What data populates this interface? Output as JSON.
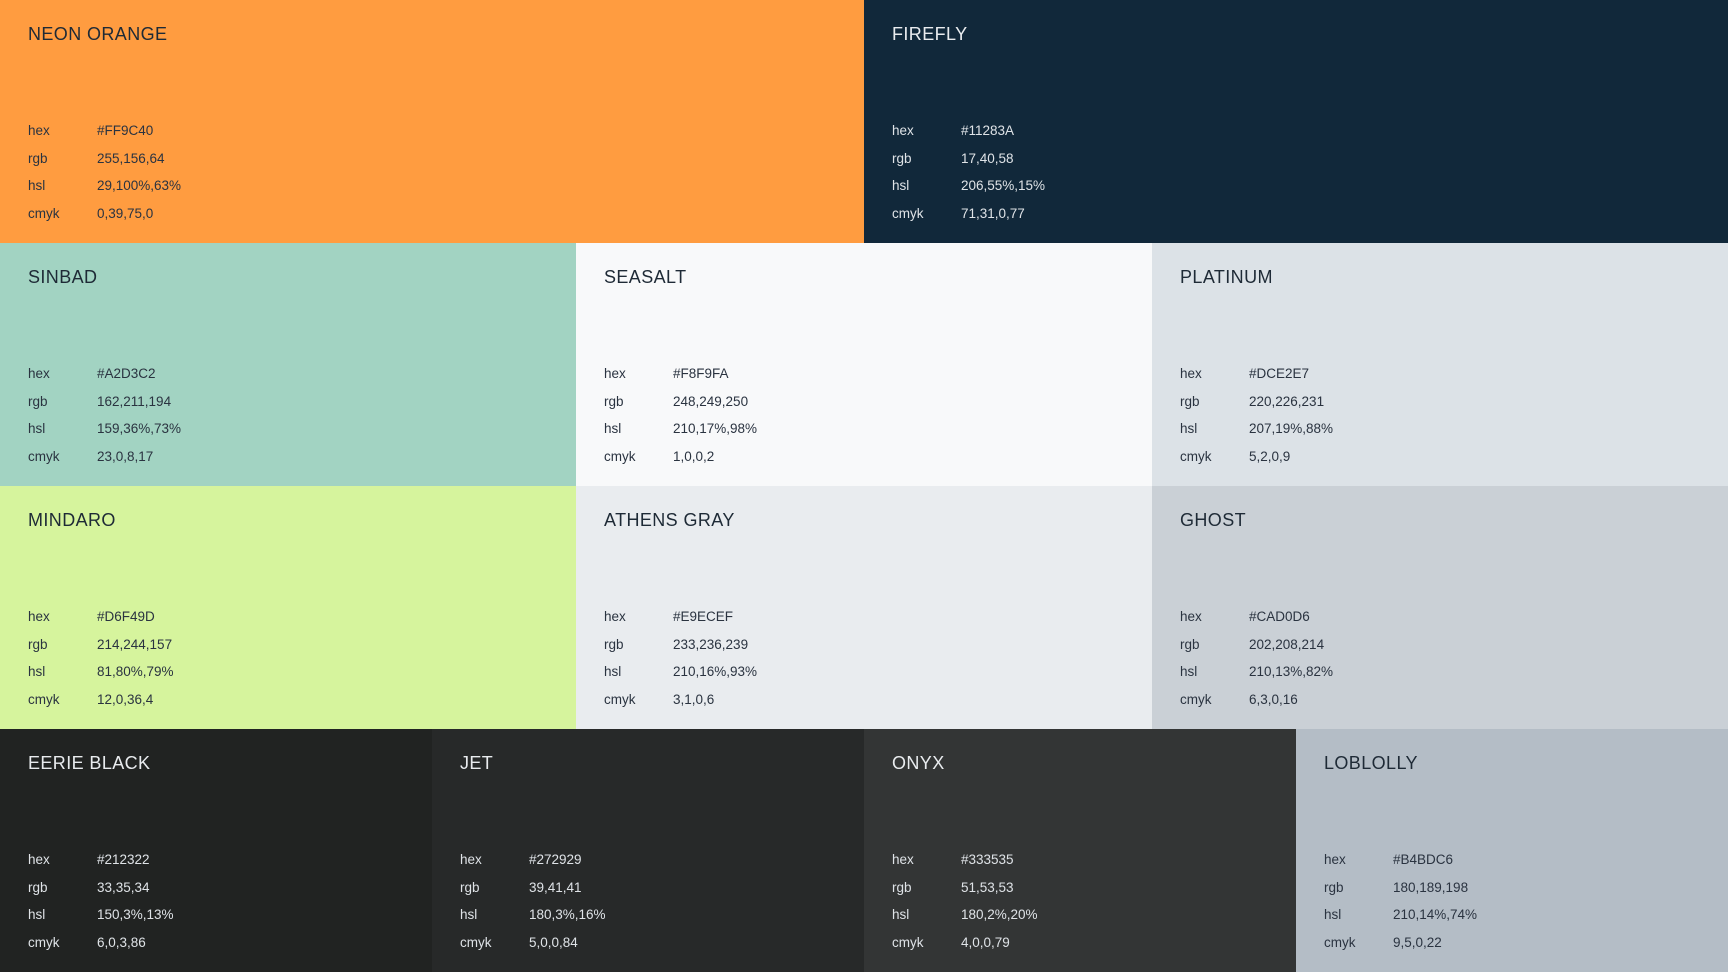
{
  "rows": [
    [
      {
        "name": "NEON ORANGE",
        "bg": "#FF9C40",
        "theme": "light",
        "hex": "#FF9C40",
        "rgb": "255,156,64",
        "hsl": "29,100%,63%",
        "cmyk": "0,39,75,0"
      },
      {
        "name": "FIREFLY",
        "bg": "#11283A",
        "theme": "dark",
        "hex": "#11283A",
        "rgb": "17,40,58",
        "hsl": "206,55%,15%",
        "cmyk": "71,31,0,77"
      }
    ],
    [
      {
        "name": "SINBAD",
        "bg": "#A2D3C2",
        "theme": "light",
        "hex": "#A2D3C2",
        "rgb": "162,211,194",
        "hsl": "159,36%,73%",
        "cmyk": "23,0,8,17"
      },
      {
        "name": "SEASALT",
        "bg": "#F8F9FA",
        "theme": "light",
        "hex": "#F8F9FA",
        "rgb": "248,249,250",
        "hsl": "210,17%,98%",
        "cmyk": "1,0,0,2"
      },
      {
        "name": "PLATINUM",
        "bg": "#DCE2E7",
        "theme": "light",
        "hex": "#DCE2E7",
        "rgb": "220,226,231",
        "hsl": "207,19%,88%",
        "cmyk": "5,2,0,9"
      }
    ],
    [
      {
        "name": "MINDARO",
        "bg": "#D6F49D",
        "theme": "light",
        "hex": "#D6F49D",
        "rgb": "214,244,157",
        "hsl": "81,80%,79%",
        "cmyk": "12,0,36,4"
      },
      {
        "name": "ATHENS GRAY",
        "bg": "#E9ECEF",
        "theme": "light",
        "hex": "#E9ECEF",
        "rgb": "233,236,239",
        "hsl": "210,16%,93%",
        "cmyk": "3,1,0,6"
      },
      {
        "name": "GHOST",
        "bg": "#CAD0D6",
        "theme": "light",
        "hex": "#CAD0D6",
        "rgb": "202,208,214",
        "hsl": "210,13%,82%",
        "cmyk": "6,3,0,16"
      }
    ],
    [
      {
        "name": "EERIE BLACK",
        "bg": "#212322",
        "theme": "dark",
        "hex": "#212322",
        "rgb": "33,35,34",
        "hsl": "150,3%,13%",
        "cmyk": "6,0,3,86"
      },
      {
        "name": "JET",
        "bg": "#272929",
        "theme": "dark",
        "hex": "#272929",
        "rgb": "39,41,41",
        "hsl": "180,3%,16%",
        "cmyk": "5,0,0,84"
      },
      {
        "name": "ONYX",
        "bg": "#333535",
        "theme": "dark",
        "hex": "#333535",
        "rgb": "51,53,53",
        "hsl": "180,2%,20%",
        "cmyk": "4,0,0,79"
      },
      {
        "name": "LOBLOLLY",
        "bg": "#B4BDC6",
        "theme": "light",
        "hex": "#B4BDC6",
        "rgb": "180,189,198",
        "hsl": "210,14%,74%",
        "cmyk": "9,5,0,22"
      }
    ]
  ],
  "labels": {
    "hex": "hex",
    "rgb": "rgb",
    "hsl": "hsl",
    "cmyk": "cmyk"
  }
}
